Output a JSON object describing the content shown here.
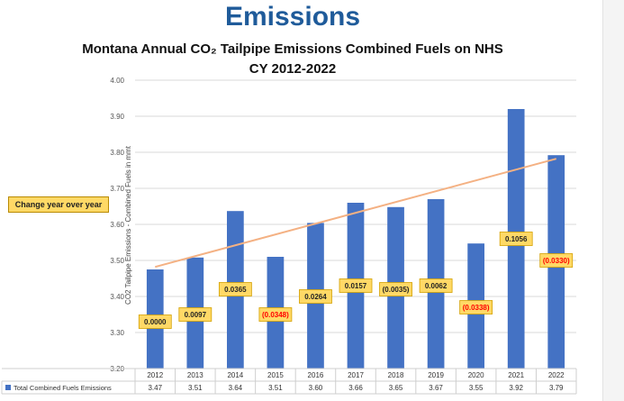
{
  "header": {
    "title": "Emissions",
    "subtitle_line1": "Montana Annual CO₂ Tailpipe Emissions Combined Fuels on NHS",
    "subtitle_line2": "CY 2012-2022"
  },
  "annotation": {
    "label": "Change year over year"
  },
  "colors": {
    "bar": "#4472c4",
    "trend": "#f4b183",
    "label_fill": "#ffd966",
    "label_border": "#d4a000",
    "negative_text": "#ff0000"
  },
  "chart_data": {
    "type": "bar",
    "title": "",
    "xlabel": "",
    "ylabel": "CO2 Tailpipe Emissions - Combined Fuels in mmt",
    "ylim": [
      3.2,
      4.0
    ],
    "yticks": [
      "4.00",
      "3.90",
      "3.80",
      "3.70",
      "3.60",
      "3.50",
      "3.40",
      "3.30",
      "3.20"
    ],
    "grid": true,
    "categories": [
      "2012",
      "2013",
      "2014",
      "2015",
      "2016",
      "2017",
      "2018",
      "2019",
      "2020",
      "2021",
      "2022"
    ],
    "series": [
      {
        "name": "Total Combined Fuels Emissions",
        "values": [
          3.475,
          3.508,
          3.637,
          3.51,
          3.604,
          3.66,
          3.648,
          3.67,
          3.547,
          3.92,
          3.792
        ],
        "table_values": [
          "3.47",
          "3.51",
          "3.64",
          "3.51",
          "3.60",
          "3.66",
          "3.65",
          "3.67",
          "3.55",
          "3.92",
          "3.79"
        ]
      }
    ],
    "trendline": {
      "start": 3.482,
      "end": 3.782
    },
    "change_labels": [
      {
        "text": "0.0000",
        "y": 3.33,
        "negative": false
      },
      {
        "text": "0.0097",
        "y": 3.35,
        "negative": false
      },
      {
        "text": "0.0365",
        "y": 3.42,
        "negative": false
      },
      {
        "text": "(0.0348)",
        "y": 3.35,
        "negative": true
      },
      {
        "text": "0.0264",
        "y": 3.4,
        "negative": false
      },
      {
        "text": "0.0157",
        "y": 3.43,
        "negative": false
      },
      {
        "text": "(0.0035)",
        "y": 3.42,
        "negative": false
      },
      {
        "text": "0.0062",
        "y": 3.43,
        "negative": false
      },
      {
        "text": "(0.0338)",
        "y": 3.37,
        "negative": true
      },
      {
        "text": "0.1056",
        "y": 3.56,
        "negative": false
      },
      {
        "text": "(0.0330)",
        "y": 3.5,
        "negative": true
      }
    ],
    "legend": "bottom-left data table"
  }
}
